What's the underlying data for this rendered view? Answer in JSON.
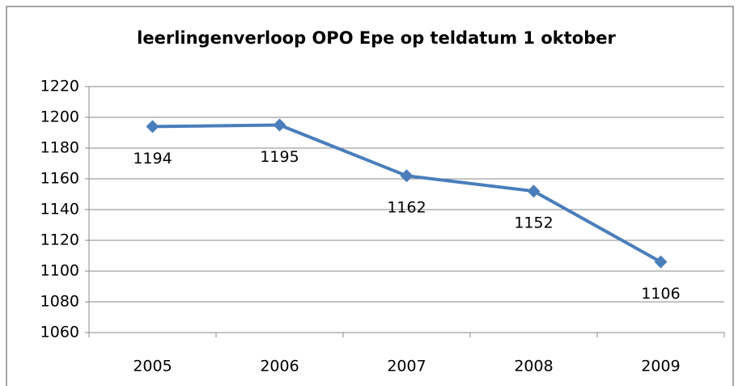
{
  "chart_data": {
    "type": "line",
    "title": "leerlingenverloop OPO Epe op teldatum 1 oktober",
    "categories": [
      "2005",
      "2006",
      "2007",
      "2008",
      "2009"
    ],
    "values": [
      1194,
      1195,
      1162,
      1152,
      1106
    ],
    "color": "#4a7ebb",
    "ylim": [
      1060,
      1220
    ],
    "yticks": [
      1060,
      1080,
      1100,
      1120,
      1140,
      1160,
      1180,
      1200,
      1220
    ],
    "grid": true
  }
}
